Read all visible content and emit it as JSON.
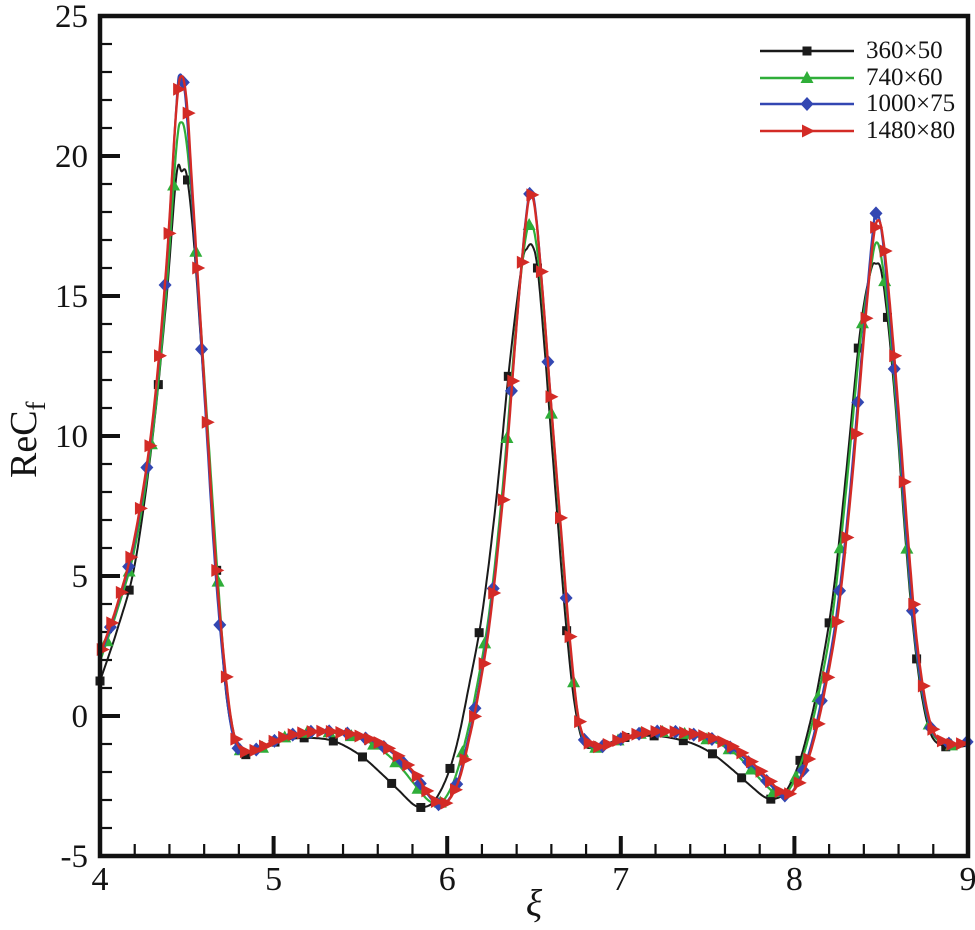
{
  "figure": {
    "xlabel": "ξ",
    "ylabel_main": "ReC",
    "ylabel_sub": "f"
  },
  "chart_data": {
    "type": "line",
    "title": "",
    "xlabel": "ξ",
    "ylabel": "ReC_f",
    "xlim": [
      4,
      9
    ],
    "ylim": [
      -5,
      25
    ],
    "x_major_ticks": [
      4,
      5,
      6,
      7,
      8,
      9
    ],
    "x_minor_step": 0.2,
    "y_major_ticks": [
      25,
      20,
      15,
      10,
      5,
      0,
      -5
    ],
    "y_minor_step": 1,
    "grid": false,
    "legend_position": "top-right",
    "axis_color": "#111111",
    "series": [
      {
        "name": "360×50",
        "color": "#1a1a1a",
        "marker": "square",
        "marker_interval": 0.168,
        "marker_phase": 4.0,
        "line_width": 2.0,
        "points": [
          [
            4.0,
            1.25
          ],
          [
            4.1,
            3.1
          ],
          [
            4.2,
            5.4
          ],
          [
            4.3,
            9.8
          ],
          [
            4.38,
            14.7
          ],
          [
            4.44,
            19.3
          ],
          [
            4.47,
            19.45
          ],
          [
            4.5,
            19.3
          ],
          [
            4.54,
            17.0
          ],
          [
            4.58,
            13.5
          ],
          [
            4.63,
            9.0
          ],
          [
            4.68,
            4.5
          ],
          [
            4.72,
            1.2
          ],
          [
            4.76,
            -0.5
          ],
          [
            4.8,
            -1.25
          ],
          [
            4.85,
            -1.38
          ],
          [
            4.92,
            -1.25
          ],
          [
            5.0,
            -0.95
          ],
          [
            5.1,
            -0.82
          ],
          [
            5.2,
            -0.78
          ],
          [
            5.32,
            -0.85
          ],
          [
            5.42,
            -1.1
          ],
          [
            5.52,
            -1.5
          ],
          [
            5.62,
            -2.05
          ],
          [
            5.72,
            -2.65
          ],
          [
            5.81,
            -3.18
          ],
          [
            5.87,
            -3.25
          ],
          [
            5.93,
            -3.0
          ],
          [
            6.0,
            -2.15
          ],
          [
            6.06,
            -0.9
          ],
          [
            6.12,
            0.9
          ],
          [
            6.2,
            3.6
          ],
          [
            6.28,
            7.6
          ],
          [
            6.36,
            12.6
          ],
          [
            6.43,
            16.1
          ],
          [
            6.46,
            16.7
          ],
          [
            6.49,
            16.8
          ],
          [
            6.52,
            16.0
          ],
          [
            6.56,
            13.2
          ],
          [
            6.62,
            8.3
          ],
          [
            6.68,
            3.6
          ],
          [
            6.73,
            0.6
          ],
          [
            6.78,
            -0.9
          ],
          [
            6.83,
            -1.15
          ],
          [
            6.9,
            -1.05
          ],
          [
            7.0,
            -0.8
          ],
          [
            7.1,
            -0.72
          ],
          [
            7.22,
            -0.72
          ],
          [
            7.34,
            -0.85
          ],
          [
            7.44,
            -1.05
          ],
          [
            7.54,
            -1.4
          ],
          [
            7.64,
            -1.9
          ],
          [
            7.74,
            -2.45
          ],
          [
            7.83,
            -2.9
          ],
          [
            7.89,
            -2.95
          ],
          [
            7.95,
            -2.7
          ],
          [
            8.02,
            -1.8
          ],
          [
            8.08,
            -0.5
          ],
          [
            8.14,
            1.2
          ],
          [
            8.22,
            4.2
          ],
          [
            8.3,
            8.8
          ],
          [
            8.38,
            13.8
          ],
          [
            8.44,
            15.9
          ],
          [
            8.47,
            16.15
          ],
          [
            8.5,
            15.9
          ],
          [
            8.54,
            14.0
          ],
          [
            8.59,
            10.5
          ],
          [
            8.64,
            6.3
          ],
          [
            8.69,
            2.8
          ],
          [
            8.74,
            0.5
          ],
          [
            8.79,
            -0.7
          ],
          [
            8.85,
            -1.05
          ],
          [
            8.92,
            -1.12
          ],
          [
            9.0,
            -1.05
          ]
        ]
      },
      {
        "name": "740×60",
        "color": "#2fae39",
        "marker": "triangle-up",
        "marker_interval": 0.128,
        "marker_phase": 4.04,
        "line_width": 2.2,
        "points": [
          [
            4.0,
            1.95
          ],
          [
            4.1,
            3.8
          ],
          [
            4.2,
            6.0
          ],
          [
            4.3,
            9.9
          ],
          [
            4.38,
            15.0
          ],
          [
            4.44,
            20.3
          ],
          [
            4.47,
            21.2
          ],
          [
            4.5,
            20.4
          ],
          [
            4.54,
            17.6
          ],
          [
            4.58,
            14.0
          ],
          [
            4.63,
            9.4
          ],
          [
            4.68,
            4.8
          ],
          [
            4.72,
            1.6
          ],
          [
            4.76,
            -0.3
          ],
          [
            4.8,
            -1.15
          ],
          [
            4.85,
            -1.3
          ],
          [
            4.92,
            -1.18
          ],
          [
            5.0,
            -0.92
          ],
          [
            5.1,
            -0.7
          ],
          [
            5.22,
            -0.58
          ],
          [
            5.32,
            -0.58
          ],
          [
            5.42,
            -0.68
          ],
          [
            5.52,
            -0.85
          ],
          [
            5.62,
            -1.2
          ],
          [
            5.72,
            -1.75
          ],
          [
            5.8,
            -2.35
          ],
          [
            5.88,
            -2.95
          ],
          [
            5.93,
            -3.1
          ],
          [
            5.98,
            -3.0
          ],
          [
            6.04,
            -2.3
          ],
          [
            6.1,
            -1.0
          ],
          [
            6.16,
            0.7
          ],
          [
            6.24,
            3.6
          ],
          [
            6.32,
            8.2
          ],
          [
            6.4,
            14.2
          ],
          [
            6.45,
            17.0
          ],
          [
            6.48,
            17.55
          ],
          [
            6.51,
            17.0
          ],
          [
            6.55,
            14.8
          ],
          [
            6.6,
            10.8
          ],
          [
            6.66,
            6.0
          ],
          [
            6.71,
            2.3
          ],
          [
            6.76,
            -0.3
          ],
          [
            6.81,
            -1.05
          ],
          [
            6.87,
            -1.12
          ],
          [
            6.95,
            -0.95
          ],
          [
            7.05,
            -0.72
          ],
          [
            7.15,
            -0.6
          ],
          [
            7.25,
            -0.57
          ],
          [
            7.35,
            -0.62
          ],
          [
            7.45,
            -0.75
          ],
          [
            7.55,
            -0.95
          ],
          [
            7.65,
            -1.3
          ],
          [
            7.75,
            -1.9
          ],
          [
            7.84,
            -2.5
          ],
          [
            7.9,
            -2.78
          ],
          [
            7.96,
            -2.7
          ],
          [
            8.02,
            -2.0
          ],
          [
            8.08,
            -0.8
          ],
          [
            8.14,
            0.8
          ],
          [
            8.22,
            3.6
          ],
          [
            8.3,
            8.2
          ],
          [
            8.38,
            13.4
          ],
          [
            8.44,
            16.0
          ],
          [
            8.47,
            16.9
          ],
          [
            8.5,
            16.4
          ],
          [
            8.54,
            14.4
          ],
          [
            8.59,
            10.8
          ],
          [
            8.64,
            6.6
          ],
          [
            8.69,
            3.0
          ],
          [
            8.74,
            0.7
          ],
          [
            8.79,
            -0.55
          ],
          [
            8.85,
            -0.95
          ],
          [
            8.92,
            -1.05
          ],
          [
            9.0,
            -0.95
          ]
        ]
      },
      {
        "name": "1000×75",
        "color": "#3347b2",
        "marker": "diamond",
        "marker_interval": 0.105,
        "marker_phase": 4.06,
        "line_width": 2.2,
        "points": [
          [
            4.0,
            2.1
          ],
          [
            4.1,
            3.95
          ],
          [
            4.2,
            6.3
          ],
          [
            4.3,
            10.3
          ],
          [
            4.38,
            15.8
          ],
          [
            4.44,
            21.8
          ],
          [
            4.46,
            22.9
          ],
          [
            4.49,
            22.2
          ],
          [
            4.52,
            19.6
          ],
          [
            4.56,
            15.6
          ],
          [
            4.61,
            10.6
          ],
          [
            4.66,
            5.6
          ],
          [
            4.71,
            1.9
          ],
          [
            4.75,
            -0.2
          ],
          [
            4.79,
            -1.1
          ],
          [
            4.84,
            -1.28
          ],
          [
            4.92,
            -1.15
          ],
          [
            5.0,
            -0.9
          ],
          [
            5.1,
            -0.68
          ],
          [
            5.22,
            -0.56
          ],
          [
            5.32,
            -0.55
          ],
          [
            5.42,
            -0.62
          ],
          [
            5.52,
            -0.78
          ],
          [
            5.62,
            -1.05
          ],
          [
            5.72,
            -1.5
          ],
          [
            5.82,
            -2.2
          ],
          [
            5.9,
            -2.9
          ],
          [
            5.95,
            -3.15
          ],
          [
            6.0,
            -3.05
          ],
          [
            6.06,
            -2.35
          ],
          [
            6.11,
            -1.1
          ],
          [
            6.17,
            0.6
          ],
          [
            6.24,
            3.3
          ],
          [
            6.32,
            7.8
          ],
          [
            6.4,
            14.0
          ],
          [
            6.45,
            17.6
          ],
          [
            6.48,
            18.7
          ],
          [
            6.51,
            18.0
          ],
          [
            6.55,
            15.1
          ],
          [
            6.6,
            11.0
          ],
          [
            6.66,
            6.2
          ],
          [
            6.71,
            2.4
          ],
          [
            6.76,
            -0.25
          ],
          [
            6.81,
            -1.0
          ],
          [
            6.88,
            -1.1
          ],
          [
            6.96,
            -0.92
          ],
          [
            7.06,
            -0.7
          ],
          [
            7.16,
            -0.58
          ],
          [
            7.26,
            -0.55
          ],
          [
            7.36,
            -0.6
          ],
          [
            7.46,
            -0.72
          ],
          [
            7.56,
            -0.9
          ],
          [
            7.66,
            -1.25
          ],
          [
            7.76,
            -1.8
          ],
          [
            7.86,
            -2.45
          ],
          [
            7.92,
            -2.8
          ],
          [
            7.98,
            -2.75
          ],
          [
            8.04,
            -2.1
          ],
          [
            8.1,
            -0.95
          ],
          [
            8.16,
            0.7
          ],
          [
            8.24,
            3.5
          ],
          [
            8.32,
            8.0
          ],
          [
            8.4,
            13.8
          ],
          [
            8.45,
            17.2
          ],
          [
            8.47,
            17.95
          ],
          [
            8.5,
            17.4
          ],
          [
            8.54,
            15.0
          ],
          [
            8.59,
            11.2
          ],
          [
            8.64,
            6.9
          ],
          [
            8.69,
            3.1
          ],
          [
            8.74,
            0.8
          ],
          [
            8.79,
            -0.5
          ],
          [
            8.85,
            -0.9
          ],
          [
            8.92,
            -1.0
          ],
          [
            9.0,
            -0.92
          ]
        ]
      },
      {
        "name": "1480×80",
        "color": "#d32b26",
        "marker": "triangle-right",
        "marker_interval": 0.055,
        "marker_phase": 4.01,
        "line_width": 2.4,
        "points": [
          [
            4.0,
            2.2
          ],
          [
            4.1,
            4.0
          ],
          [
            4.2,
            6.4
          ],
          [
            4.3,
            10.4
          ],
          [
            4.38,
            15.9
          ],
          [
            4.44,
            21.7
          ],
          [
            4.47,
            22.85
          ],
          [
            4.5,
            21.9
          ],
          [
            4.53,
            19.0
          ],
          [
            4.57,
            15.0
          ],
          [
            4.62,
            10.0
          ],
          [
            4.67,
            5.2
          ],
          [
            4.72,
            1.7
          ],
          [
            4.76,
            -0.3
          ],
          [
            4.8,
            -1.1
          ],
          [
            4.85,
            -1.28
          ],
          [
            4.92,
            -1.15
          ],
          [
            5.0,
            -0.9
          ],
          [
            5.1,
            -0.68
          ],
          [
            5.22,
            -0.56
          ],
          [
            5.32,
            -0.55
          ],
          [
            5.42,
            -0.62
          ],
          [
            5.52,
            -0.76
          ],
          [
            5.62,
            -1.0
          ],
          [
            5.72,
            -1.45
          ],
          [
            5.82,
            -2.1
          ],
          [
            5.9,
            -2.85
          ],
          [
            5.96,
            -3.12
          ],
          [
            6.01,
            -3.0
          ],
          [
            6.07,
            -2.25
          ],
          [
            6.12,
            -1.0
          ],
          [
            6.18,
            0.8
          ],
          [
            6.25,
            3.6
          ],
          [
            6.33,
            8.4
          ],
          [
            6.4,
            14.0
          ],
          [
            6.45,
            17.5
          ],
          [
            6.48,
            18.6
          ],
          [
            6.51,
            17.9
          ],
          [
            6.55,
            15.1
          ],
          [
            6.6,
            11.0
          ],
          [
            6.66,
            6.3
          ],
          [
            6.71,
            2.5
          ],
          [
            6.76,
            -0.2
          ],
          [
            6.82,
            -1.0
          ],
          [
            6.89,
            -1.08
          ],
          [
            6.97,
            -0.9
          ],
          [
            7.07,
            -0.68
          ],
          [
            7.17,
            -0.57
          ],
          [
            7.27,
            -0.55
          ],
          [
            7.37,
            -0.6
          ],
          [
            7.47,
            -0.7
          ],
          [
            7.57,
            -0.88
          ],
          [
            7.67,
            -1.2
          ],
          [
            7.77,
            -1.75
          ],
          [
            7.87,
            -2.4
          ],
          [
            7.93,
            -2.75
          ],
          [
            7.99,
            -2.7
          ],
          [
            8.05,
            -2.05
          ],
          [
            8.11,
            -0.9
          ],
          [
            8.17,
            0.75
          ],
          [
            8.25,
            3.6
          ],
          [
            8.33,
            8.3
          ],
          [
            8.4,
            13.5
          ],
          [
            8.45,
            16.8
          ],
          [
            8.48,
            17.7
          ],
          [
            8.51,
            17.1
          ],
          [
            8.55,
            14.7
          ],
          [
            8.6,
            10.9
          ],
          [
            8.65,
            6.7
          ],
          [
            8.7,
            3.0
          ],
          [
            8.75,
            0.7
          ],
          [
            8.8,
            -0.55
          ],
          [
            8.86,
            -0.92
          ],
          [
            8.93,
            -1.02
          ],
          [
            9.0,
            -0.92
          ]
        ]
      }
    ]
  }
}
